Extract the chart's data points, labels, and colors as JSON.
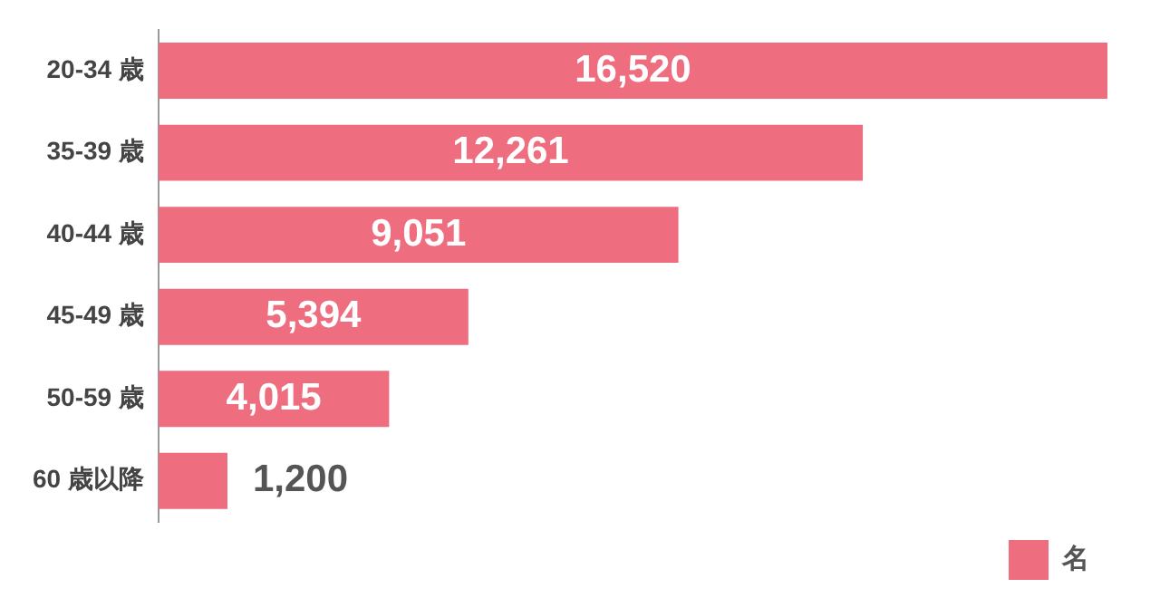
{
  "chart_data": {
    "type": "bar",
    "orientation": "horizontal",
    "categories": [
      "20-34 歳",
      "35-39 歳",
      "40-44 歳",
      "45-49 歳",
      "50-59 歳",
      "60 歳以降"
    ],
    "series": [
      {
        "name": "名",
        "color": "#ee6e80",
        "values": [
          16520,
          12261,
          9051,
          5394,
          4015,
          1200
        ],
        "value_labels": [
          "16,520",
          "12,261",
          "9,051",
          "5,394",
          "4,015",
          "1,200"
        ]
      }
    ],
    "legend": "bottom right",
    "grid": false
  }
}
